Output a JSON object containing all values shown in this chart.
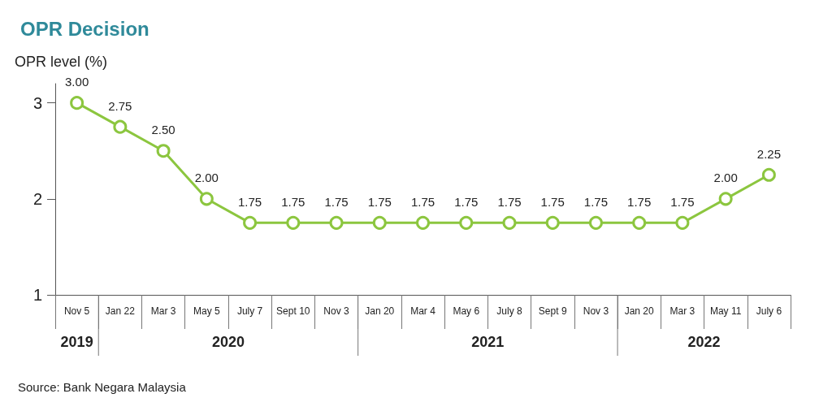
{
  "chart_data": {
    "type": "line",
    "title": "OPR Decision",
    "ylabel": "OPR level (%)",
    "categories": [
      "Nov 5",
      "Jan 22",
      "Mar 3",
      "May 5",
      "July 7",
      "Sept 10",
      "Nov 3",
      "Jan 20",
      "Mar 4",
      "May 6",
      "July 8",
      "Sept 9",
      "Nov 3",
      "Jan 20",
      "Mar 3",
      "May 11",
      "July 6"
    ],
    "values": [
      3,
      2.75,
      2.5,
      2,
      1.75,
      1.75,
      1.75,
      1.75,
      1.75,
      1.75,
      1.75,
      1.75,
      1.75,
      1.75,
      1.75,
      2,
      2.25
    ],
    "value_labels": [
      "3.00",
      "2.75",
      "2.50",
      "2.00",
      "1.75",
      "1.75",
      "1.75",
      "1.75",
      "1.75",
      "1.75",
      "1.75",
      "1.75",
      "1.75",
      "1.75",
      "1.75",
      "2.00",
      "2.25"
    ],
    "color": "#8cc63f",
    "marker": "circle",
    "grid": false,
    "ylim": [
      1,
      3.2
    ],
    "yticks": [
      1,
      2,
      3
    ],
    "annotations": [
      "2019",
      "2020",
      "2021",
      "2022",
      "Source: Bank Negara Malaysia"
    ]
  }
}
